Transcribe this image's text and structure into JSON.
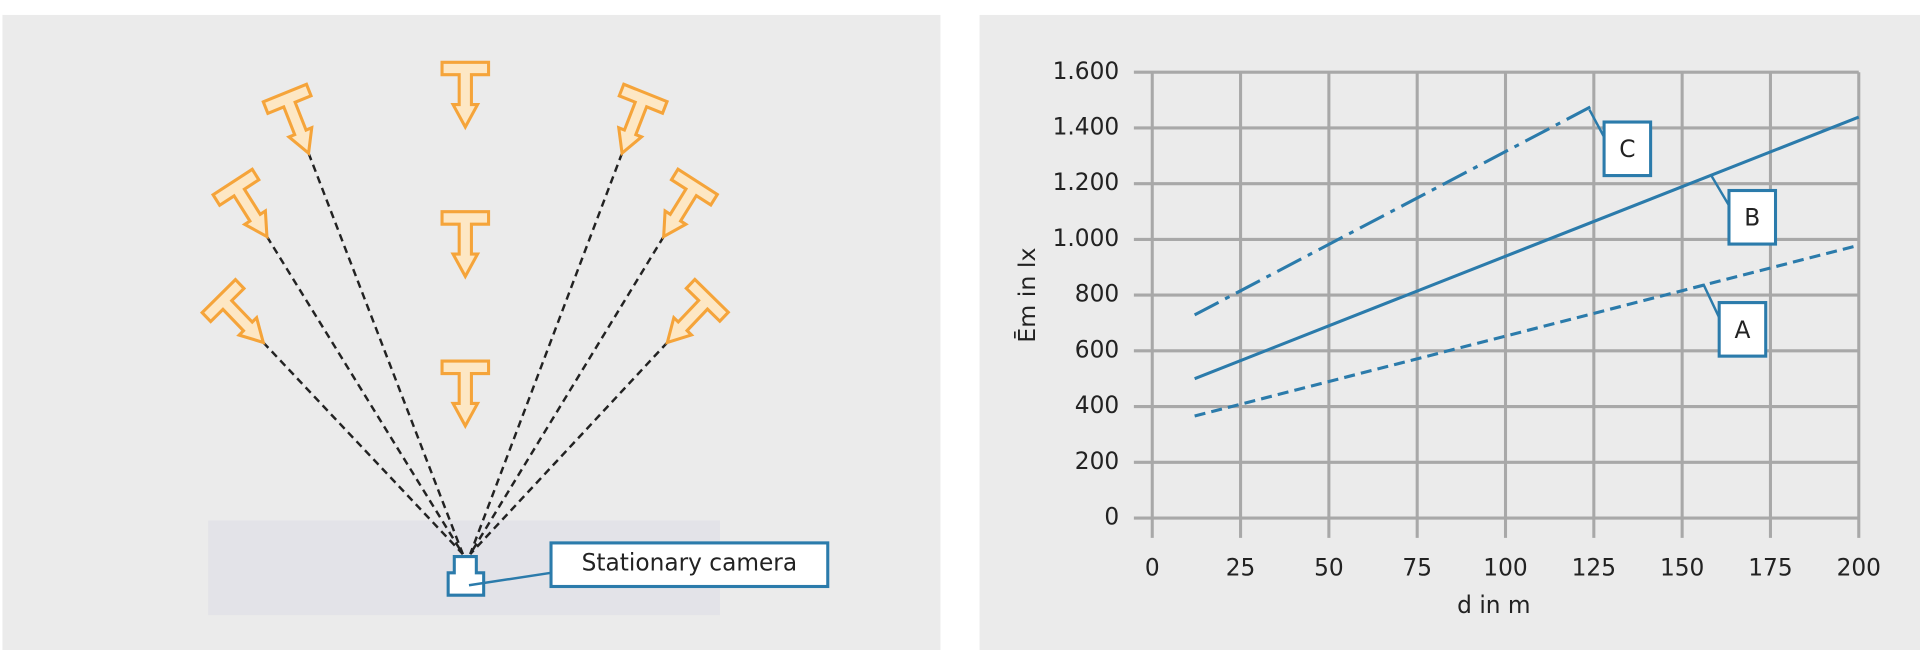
{
  "diagram": {
    "camera_label": "Stationary camera"
  },
  "chart_data": {
    "type": "line",
    "x_label": "d in m",
    "y_label": "Ēm in lx",
    "xlim": [
      0,
      200
    ],
    "xticks": [
      0,
      25,
      50,
      75,
      100,
      125,
      150,
      175,
      200
    ],
    "ylim": [
      0,
      1600
    ],
    "yticks": [
      0,
      200,
      400,
      600,
      800,
      {
        "value": 1000,
        "label": "1.000"
      },
      {
        "value": 1200,
        "label": "1.200"
      },
      {
        "value": 1400,
        "label": "1.400"
      },
      {
        "value": 1600,
        "label": "1.600"
      }
    ],
    "grid": true,
    "series": [
      {
        "name": "A",
        "color": "#2b7bab",
        "style": "dashed",
        "x": [
          12,
          200
        ],
        "values": [
          366,
          979
        ]
      },
      {
        "name": "B",
        "color": "#2b7bab",
        "style": "solid",
        "x": [
          12,
          200
        ],
        "values": [
          500,
          1439
        ]
      },
      {
        "name": "C",
        "color": "#2b7bab",
        "style": "dashdot",
        "x": [
          12,
          124
        ],
        "values": [
          729,
          1475
        ]
      }
    ]
  }
}
